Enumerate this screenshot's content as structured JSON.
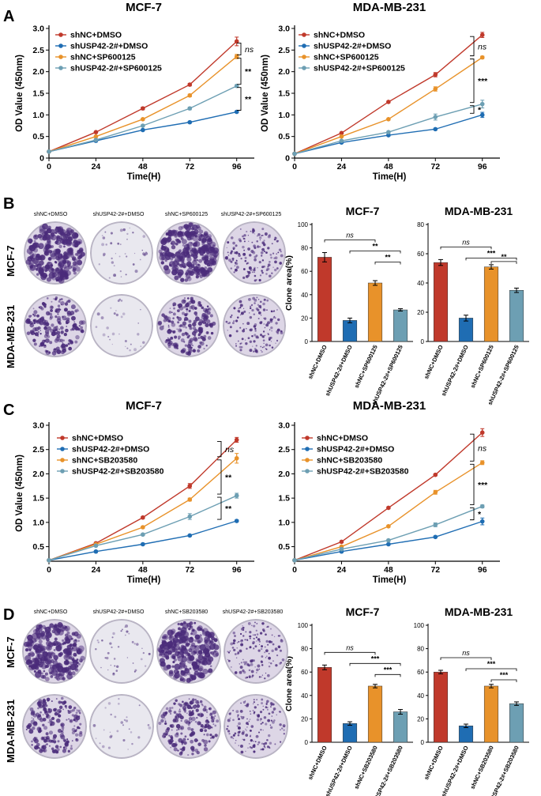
{
  "panels": {
    "a": "A",
    "b": "B",
    "c": "C",
    "d": "D"
  },
  "colors": {
    "red": "#c0392b",
    "blue": "#1f6db3",
    "orange": "#e8922a",
    "teal": "#6d9fb3"
  },
  "dish_rows": {
    "B": {
      "rows": [
        "MCF-7",
        "MDA-MB-231"
      ],
      "cols": [
        "shNC+DMSO",
        "shUSP42-2#+DMSO",
        "shNC+SP600125",
        "shUSP42-2#+SP600125"
      ]
    },
    "D": {
      "rows": [
        "MCF-7",
        "MDA-MB-231"
      ],
      "cols": [
        "shNC+DMSO",
        "shUSP42-2#+DMSO",
        "shNC+SB203580",
        "shUSP42-2#+SB203580"
      ]
    }
  },
  "chart_data": [
    {
      "id": "A1",
      "type": "line",
      "title": "MCF-7",
      "xlabel": "Time(H)",
      "ylabel": "OD Value (450nm)",
      "x": [
        0,
        24,
        48,
        72,
        96
      ],
      "xlim": [
        0,
        105
      ],
      "ylim": [
        0,
        3.0
      ],
      "yticks": [
        "0",
        "0.5",
        "1.0",
        "1.5",
        "2.0",
        "2.5",
        "3.0"
      ],
      "ytick_values": [
        0,
        0.5,
        1.0,
        1.5,
        2.0,
        2.5,
        3.0
      ],
      "legend_position": "top-left",
      "series": [
        {
          "name": "shNC+DMSO",
          "color": "#c0392b",
          "values": [
            0.15,
            0.6,
            1.15,
            1.7,
            2.7
          ],
          "err": [
            0,
            0.02,
            0.03,
            0.03,
            0.1
          ]
        },
        {
          "name": "shUSP42-2#+DMSO",
          "color": "#1f6db3",
          "values": [
            0.15,
            0.4,
            0.65,
            0.83,
            1.07
          ],
          "err": [
            0,
            0.02,
            0.02,
            0.02,
            0.02
          ]
        },
        {
          "name": "shNC+SP600125",
          "color": "#e8922a",
          "values": [
            0.15,
            0.5,
            0.9,
            1.45,
            2.35
          ],
          "err": [
            0,
            0.02,
            0.02,
            0.03,
            0.05
          ]
        },
        {
          "name": "shUSP42-2#+SP600125",
          "color": "#6d9fb3",
          "values": [
            0.15,
            0.42,
            0.75,
            1.15,
            1.67
          ],
          "err": [
            0,
            0.02,
            0.02,
            0.03,
            0.03
          ]
        }
      ],
      "annotations": [
        "ns",
        "**",
        "**"
      ]
    },
    {
      "id": "A2",
      "type": "line",
      "title": "MDA-MB-231",
      "xlabel": "Time(H)",
      "ylabel": "OD Value (450nm)",
      "x": [
        0,
        24,
        48,
        72,
        96
      ],
      "xlim": [
        0,
        105
      ],
      "ylim": [
        0,
        3.0
      ],
      "yticks": [
        "0",
        "0.5",
        "1.0",
        "1.5",
        "2.0",
        "2.5",
        "3.0"
      ],
      "ytick_values": [
        0,
        0.5,
        1.0,
        1.5,
        2.0,
        2.5,
        3.0
      ],
      "legend_position": "top-left",
      "series": [
        {
          "name": "shNC+DMSO",
          "color": "#c0392b",
          "values": [
            0.1,
            0.58,
            1.3,
            1.93,
            2.85
          ],
          "err": [
            0,
            0.02,
            0.02,
            0.05,
            0.06
          ]
        },
        {
          "name": "shUSP42-2#+DMSO",
          "color": "#1f6db3",
          "values": [
            0.1,
            0.36,
            0.53,
            0.67,
            1.0
          ],
          "err": [
            0,
            0.02,
            0.02,
            0.02,
            0.06
          ]
        },
        {
          "name": "shNC+SP600125",
          "color": "#e8922a",
          "values": [
            0.1,
            0.5,
            0.9,
            1.6,
            2.33
          ],
          "err": [
            0,
            0.02,
            0.02,
            0.05,
            0.03
          ]
        },
        {
          "name": "shUSP42-2#+SP600125",
          "color": "#6d9fb3",
          "values": [
            0.1,
            0.4,
            0.6,
            0.95,
            1.25
          ],
          "err": [
            0,
            0.02,
            0.02,
            0.07,
            0.09
          ]
        }
      ],
      "annotations": [
        "ns",
        "***",
        "*"
      ]
    },
    {
      "id": "B1",
      "type": "bar",
      "title": "MCF-7",
      "ylabel": "Clone area(%)",
      "categories": [
        "shNC+DMSO",
        "shUSP42-2#+DMSO",
        "shNC+SP600125",
        "shUSP42-2#+SP600125"
      ],
      "values": [
        72,
        18,
        50,
        27
      ],
      "err": [
        4,
        2,
        2,
        1
      ],
      "ylim": [
        0,
        100
      ],
      "yticks": [
        "0",
        "20",
        "40",
        "60",
        "80",
        "100"
      ],
      "ytick_values": [
        0,
        20,
        40,
        60,
        80,
        100
      ],
      "colors": [
        "#c0392b",
        "#1f6db3",
        "#e8922a",
        "#6d9fb3"
      ],
      "annotations": [
        "ns",
        "**",
        "**"
      ]
    },
    {
      "id": "B2",
      "type": "bar",
      "title": "MDA-MB-231",
      "categories": [
        "shNC+DMSO",
        "shUSP42-2#+DMSO",
        "shNC+SP600125",
        "shUSP42-2#+SP600125"
      ],
      "values": [
        54,
        16,
        51,
        35
      ],
      "err": [
        2,
        2,
        1.5,
        1.5
      ],
      "ylim": [
        0,
        80
      ],
      "yticks": [
        "0",
        "20",
        "40",
        "60",
        "80"
      ],
      "ytick_values": [
        0,
        20,
        40,
        60,
        80
      ],
      "colors": [
        "#c0392b",
        "#1f6db3",
        "#e8922a",
        "#6d9fb3"
      ],
      "annotations": [
        "ns",
        "***",
        "**"
      ]
    },
    {
      "id": "C1",
      "type": "line",
      "title": "MCF-7",
      "xlabel": "Time(H)",
      "ylabel": "OD Value (450nm)",
      "x": [
        0,
        24,
        48,
        72,
        96
      ],
      "xlim": [
        0,
        105
      ],
      "ylim": [
        0.2,
        3.0
      ],
      "yticks": [
        "0.5",
        "1.0",
        "1.5",
        "2.0",
        "2.5",
        "3.0"
      ],
      "ytick_values": [
        0.5,
        1.0,
        1.5,
        2.0,
        2.5,
        3.0
      ],
      "origin_label": "0",
      "legend_position": "top-left",
      "series": [
        {
          "name": "shNC+DMSO",
          "color": "#c0392b",
          "values": [
            0.22,
            0.57,
            1.1,
            1.75,
            2.7
          ],
          "err": [
            0,
            0.02,
            0.02,
            0.05,
            0.05
          ]
        },
        {
          "name": "shUSP42-2#+DMSO",
          "color": "#1f6db3",
          "values": [
            0.22,
            0.4,
            0.55,
            0.73,
            1.03
          ],
          "err": [
            0,
            0.02,
            0.02,
            0.02,
            0.02
          ]
        },
        {
          "name": "shNC+SB203580",
          "color": "#e8922a",
          "values": [
            0.22,
            0.55,
            0.9,
            1.47,
            2.32
          ],
          "err": [
            0,
            0.02,
            0.02,
            0.03,
            0.1
          ]
        },
        {
          "name": "shUSP42-2#+SB203580",
          "color": "#6d9fb3",
          "values": [
            0.22,
            0.52,
            0.75,
            1.12,
            1.55
          ],
          "err": [
            0,
            0.02,
            0.02,
            0.06,
            0.05
          ]
        }
      ],
      "annotations": [
        "ns",
        "**",
        "**"
      ]
    },
    {
      "id": "C2",
      "type": "line",
      "title": "MDA-MB-231",
      "xlabel": "Time(H)",
      "x": [
        0,
        24,
        48,
        72,
        96
      ],
      "xlim": [
        0,
        105
      ],
      "ylim": [
        0.2,
        3.0
      ],
      "yticks": [
        "0.5",
        "1.0",
        "1.5",
        "2.0",
        "2.5",
        "3.0"
      ],
      "ytick_values": [
        0.5,
        1.0,
        1.5,
        2.0,
        2.5,
        3.0
      ],
      "origin_label": "0",
      "legend_position": "top-left",
      "series": [
        {
          "name": "shNC+DMSO",
          "color": "#c0392b",
          "values": [
            0.22,
            0.6,
            1.3,
            1.98,
            2.85
          ],
          "err": [
            0,
            0.02,
            0.02,
            0.02,
            0.08
          ]
        },
        {
          "name": "shUSP42-2#+DMSO",
          "color": "#1f6db3",
          "values": [
            0.22,
            0.4,
            0.55,
            0.7,
            1.02
          ],
          "err": [
            0,
            0.02,
            0.02,
            0.02,
            0.07
          ]
        },
        {
          "name": "shNC+SB203580",
          "color": "#e8922a",
          "values": [
            0.22,
            0.5,
            0.92,
            1.62,
            2.23
          ],
          "err": [
            0,
            0.02,
            0.02,
            0.04,
            0.04
          ]
        },
        {
          "name": "shUSP42-2#+SB203580",
          "color": "#6d9fb3",
          "values": [
            0.22,
            0.45,
            0.63,
            0.95,
            1.33
          ],
          "err": [
            0,
            0.02,
            0.02,
            0.04,
            0.03
          ]
        }
      ],
      "annotations": [
        "ns",
        "***",
        "*"
      ]
    },
    {
      "id": "D1",
      "type": "bar",
      "title": "MCF-7",
      "ylabel": "Clone area(%)",
      "categories": [
        "shNC+DMSO",
        "shUSP42-2#+DMSO",
        "shNC+SB203580",
        "shUSP42-2#+SB203580"
      ],
      "values": [
        64,
        16,
        48,
        26
      ],
      "err": [
        2,
        1.5,
        1.5,
        2
      ],
      "ylim": [
        0,
        100
      ],
      "yticks": [
        "0",
        "20",
        "40",
        "60",
        "80",
        "100"
      ],
      "ytick_values": [
        0,
        20,
        40,
        60,
        80,
        100
      ],
      "colors": [
        "#c0392b",
        "#1f6db3",
        "#e8922a",
        "#6d9fb3"
      ],
      "annotations": [
        "ns",
        "***",
        "***"
      ]
    },
    {
      "id": "D2",
      "type": "bar",
      "title": "MDA-MB-231",
      "categories": [
        "shNC+DMSO",
        "shUSP42-2#+DMSO",
        "shNC+SB203580",
        "shUSP42-2#+SB203580"
      ],
      "values": [
        60,
        14,
        48,
        33
      ],
      "err": [
        1.5,
        1.5,
        1.5,
        1.5
      ],
      "ylim": [
        0,
        100
      ],
      "yticks": [
        "0",
        "20",
        "40",
        "60",
        "80",
        "100"
      ],
      "ytick_values": [
        0,
        20,
        40,
        60,
        80,
        100
      ],
      "colors": [
        "#c0392b",
        "#1f6db3",
        "#e8922a",
        "#6d9fb3"
      ],
      "annotations": [
        "ns",
        "***",
        "***"
      ]
    }
  ]
}
